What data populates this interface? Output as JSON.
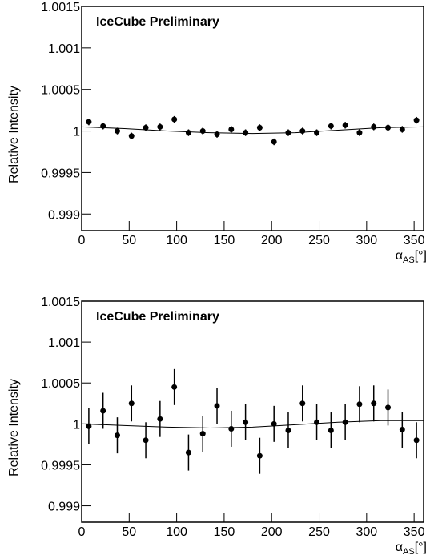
{
  "chart_data": [
    {
      "type": "scatter",
      "annotation": "IceCube Preliminary",
      "y_label": "Relative Intensity",
      "x_label": {
        "symbol": "α",
        "subscript": "AS",
        "unit": "[°]"
      },
      "color": "#000000",
      "x": [
        7.5,
        22.5,
        37.5,
        52.5,
        67.5,
        82.5,
        97.5,
        112.5,
        127.5,
        142.5,
        157.5,
        172.5,
        187.5,
        202.5,
        217.5,
        232.5,
        247.5,
        262.5,
        277.5,
        292.5,
        307.5,
        322.5,
        337.5,
        352.5
      ],
      "values": [
        1.00011,
        1.00006,
        1.0,
        0.99994,
        1.00004,
        1.00005,
        1.00014,
        0.99998,
        1.0,
        0.99996,
        1.00002,
        0.99998,
        1.00004,
        0.99987,
        0.99998,
        1.0,
        0.99998,
        1.00006,
        1.00007,
        0.99998,
        1.00005,
        1.00004,
        1.00002,
        1.00013
      ],
      "errors": [
        4e-05,
        4e-05,
        4e-05,
        4e-05,
        4e-05,
        4e-05,
        4e-05,
        4e-05,
        4e-05,
        4e-05,
        4e-05,
        4e-05,
        4e-05,
        4e-05,
        4e-05,
        4e-05,
        4e-05,
        4e-05,
        4e-05,
        4e-05,
        4e-05,
        4e-05,
        4e-05,
        4e-05
      ],
      "fit": {
        "x": [
          0,
          45,
          90,
          135,
          180,
          225,
          270,
          315,
          360
        ],
        "values": [
          1.00005,
          1.00003,
          1.0,
          0.99998,
          0.99997,
          0.99998,
          1.00001,
          1.00004,
          1.00005
        ]
      },
      "xlim": [
        0,
        360
      ],
      "ylim": [
        0.9988,
        1.0015
      ],
      "xticks": [
        0,
        50,
        100,
        150,
        200,
        250,
        300,
        350
      ],
      "yticks": [
        0.999,
        0.9995,
        1,
        1.0005,
        1.001,
        1.0015
      ]
    },
    {
      "type": "scatter",
      "annotation": "IceCube Preliminary",
      "y_label": "Relative Intensity",
      "x_label": {
        "symbol": "α",
        "subscript": "AS",
        "unit": "[°]"
      },
      "color": "#000000",
      "x": [
        7.5,
        22.5,
        37.5,
        52.5,
        67.5,
        82.5,
        97.5,
        112.5,
        127.5,
        142.5,
        157.5,
        172.5,
        187.5,
        202.5,
        217.5,
        232.5,
        247.5,
        262.5,
        277.5,
        292.5,
        307.5,
        322.5,
        337.5,
        352.5
      ],
      "values": [
        0.99997,
        1.00016,
        0.99986,
        1.00025,
        0.9998,
        1.00006,
        1.00045,
        0.99965,
        0.99988,
        1.00022,
        0.99994,
        1.00002,
        0.99961,
        1.0,
        0.99992,
        1.00025,
        1.00002,
        0.99992,
        1.00002,
        1.00024,
        1.00025,
        1.0002,
        0.99993,
        0.9998
      ],
      "errors": [
        0.00022,
        0.00022,
        0.00022,
        0.00022,
        0.00022,
        0.00022,
        0.00022,
        0.00022,
        0.00022,
        0.00022,
        0.00022,
        0.00022,
        0.00022,
        0.00022,
        0.00022,
        0.00022,
        0.00022,
        0.00022,
        0.00022,
        0.00022,
        0.00022,
        0.00022,
        0.00022,
        0.00022
      ],
      "fit": {
        "x": [
          0,
          45,
          90,
          135,
          180,
          225,
          270,
          315,
          360
        ],
        "values": [
          1.0,
          0.99998,
          0.99996,
          0.99995,
          0.99996,
          0.99999,
          1.00002,
          1.00004,
          1.00004
        ]
      },
      "xlim": [
        0,
        360
      ],
      "ylim": [
        0.9988,
        1.0015
      ],
      "xticks": [
        0,
        50,
        100,
        150,
        200,
        250,
        300,
        350
      ],
      "yticks": [
        0.999,
        0.9995,
        1,
        1.0005,
        1.001,
        1.0015
      ]
    }
  ]
}
